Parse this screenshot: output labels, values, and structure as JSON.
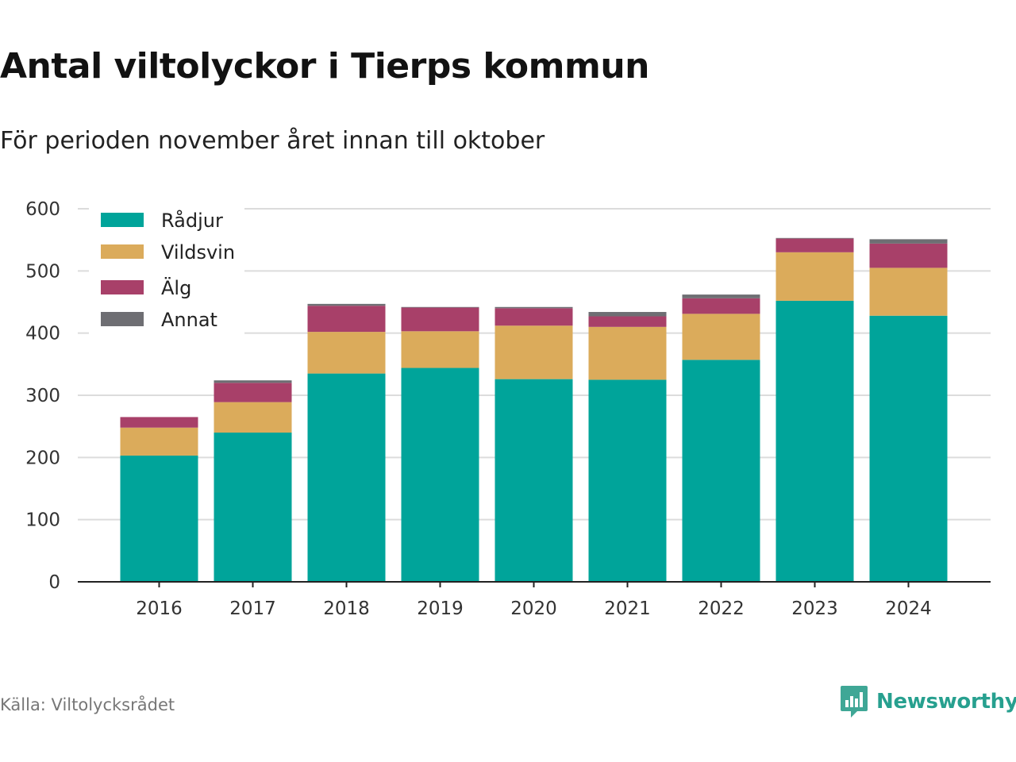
{
  "title": "Antal viltolyckor i Tierps kommun",
  "subtitle": "För perioden november året innan till oktober",
  "source": "Källa: Viltolycksrådet",
  "brand": {
    "name": "Newsworthy",
    "icon": "newsworthy-logo-icon"
  },
  "colors": {
    "Rådjur": "#00a49a",
    "Vildsvin": "#dbab5b",
    "Älg": "#a84069",
    "Annat": "#6e6e73"
  },
  "chart_data": {
    "type": "bar",
    "stacked": true,
    "categories": [
      "2016",
      "2017",
      "2018",
      "2019",
      "2020",
      "2021",
      "2022",
      "2023",
      "2024"
    ],
    "series": [
      {
        "name": "Rådjur",
        "values": [
          203,
          240,
          335,
          344,
          326,
          325,
          357,
          452,
          428
        ]
      },
      {
        "name": "Vildsvin",
        "values": [
          45,
          49,
          67,
          59,
          86,
          85,
          74,
          78,
          77
        ]
      },
      {
        "name": "Älg",
        "values": [
          17,
          31,
          42,
          38,
          28,
          17,
          25,
          22,
          39
        ]
      },
      {
        "name": "Annat",
        "values": [
          0,
          4,
          3,
          1,
          2,
          7,
          6,
          1,
          7
        ]
      }
    ],
    "yticks": [
      0,
      100,
      200,
      300,
      400,
      500,
      600
    ],
    "ylim": [
      0,
      600
    ],
    "grid": true,
    "legend": "top-left",
    "xlabel": "",
    "ylabel": ""
  }
}
